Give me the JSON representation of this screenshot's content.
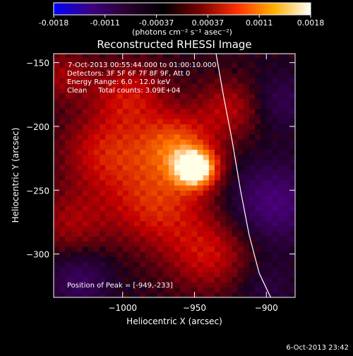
{
  "colorbar": {
    "tick_labels": [
      "-0.0018",
      "-0.0011",
      "-0.00037",
      "0.00037",
      "0.0011",
      "0.0018"
    ],
    "range": [
      -0.0018,
      0.0018
    ],
    "unit_label": "(photons cm⁻² s⁻¹ asec⁻²)",
    "colors": [
      "#0000ff",
      "#3c0080",
      "#2a0030",
      "#000000",
      "#7a0000",
      "#ff3000",
      "#ffb000",
      "#ffffff"
    ]
  },
  "plot": {
    "title": "Reconstructed RHESSI Image",
    "xlabel": "Heliocentric X (arcsec)",
    "ylabel": "Heliocentric Y (arcsec)",
    "info_lines": [
      "7-Oct-2013 00:55:44.000 to 01:00:10.000",
      "Detectors: 3F 5F 6F 7F 8F 9F, Att 0",
      "Energy Range: 6.0 - 12.0 keV",
      "Clean     Total counts: 3.09E+04"
    ],
    "peak_label": "Position of Peak = [-949,-233]",
    "footer_date": "6-Oct-2013 23:42"
  },
  "chart_data": {
    "type": "heatmap",
    "title": "Reconstructed RHESSI Image",
    "xlabel": "Heliocentric X (arcsec)",
    "ylabel": "Heliocentric Y (arcsec)",
    "xlim": [
      -1048,
      -880
    ],
    "ylim": [
      -334,
      -143
    ],
    "x_ticks": [
      -1000,
      -950,
      -900
    ],
    "x_tick_labels": [
      "−1000",
      "−950",
      "−900"
    ],
    "y_ticks": [
      -150,
      -200,
      -250,
      -300
    ],
    "y_tick_labels": [
      "−150",
      "−200",
      "−250",
      "−300"
    ],
    "peak": {
      "x": -949,
      "y": -233
    },
    "limb_curve": [
      [
        -935,
        -143
      ],
      [
        -930,
        -175
      ],
      [
        -924,
        -210
      ],
      [
        -918,
        -250
      ],
      [
        -912,
        -285
      ],
      [
        -905,
        -315
      ],
      [
        -897,
        -334
      ]
    ],
    "sources": [
      {
        "x": -949,
        "y": -233,
        "amp": 1.0,
        "sigma": 10
      },
      {
        "x": -962,
        "y": -215,
        "amp": 0.55,
        "sigma": 18
      },
      {
        "x": -975,
        "y": -260,
        "amp": 0.45,
        "sigma": 24
      },
      {
        "x": -1010,
        "y": -220,
        "amp": 0.4,
        "sigma": 22
      },
      {
        "x": -995,
        "y": -175,
        "amp": 0.35,
        "sigma": 18
      },
      {
        "x": -940,
        "y": -300,
        "amp": 0.35,
        "sigma": 20
      },
      {
        "x": -1035,
        "y": -275,
        "amp": 0.25,
        "sigma": 18
      },
      {
        "x": -925,
        "y": -185,
        "amp": 0.3,
        "sigma": 16
      },
      {
        "x": -1040,
        "y": -160,
        "amp": 0.25,
        "sigma": 14
      },
      {
        "x": -895,
        "y": -260,
        "amp": -0.35,
        "sigma": 22
      },
      {
        "x": -890,
        "y": -180,
        "amp": -0.2,
        "sigma": 16
      },
      {
        "x": -1030,
        "y": -320,
        "amp": -0.25,
        "sigma": 16
      },
      {
        "x": -900,
        "y": -325,
        "amp": -0.15,
        "sigma": 14
      }
    ]
  }
}
